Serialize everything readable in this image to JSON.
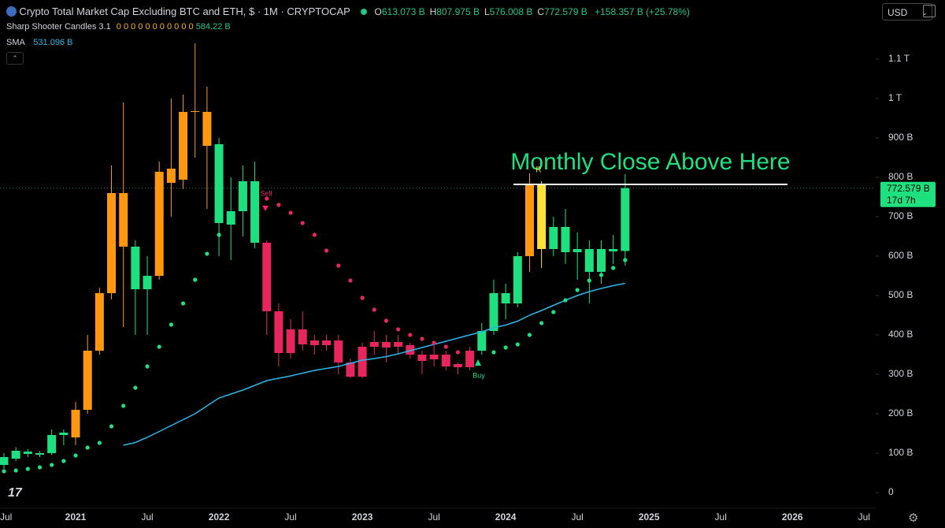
{
  "header": {
    "title": "Crypto Total Market Cap Excluding BTC and ETH, $ · 1M · CRYPTOCAP",
    "ohlc": [
      {
        "key": "O",
        "value": "613.073 B"
      },
      {
        "key": "H",
        "value": "807.975 B"
      },
      {
        "key": "L",
        "value": "576.008 B"
      },
      {
        "key": "C",
        "value": "772.579 B"
      }
    ],
    "change": "+158.357 B (+25.78%)",
    "indicators": [
      {
        "name": "Sharp Shooter Candles 3.1",
        "params": "0 0 0 0 0 0 0 0 0 0 0",
        "value": "584.22 B"
      },
      {
        "name": "SMA",
        "value": "531.096 B"
      }
    ],
    "currency": "USD"
  },
  "chart_data": {
    "type": "candlestick",
    "categories": [
      "Jul",
      null,
      null,
      null,
      null,
      null,
      "2021",
      null,
      null,
      null,
      null,
      null,
      "Jul",
      null,
      null,
      null,
      null,
      null,
      "2022",
      null,
      null,
      null,
      null,
      null,
      "Jul",
      null,
      null,
      null,
      null,
      null,
      "2023",
      null,
      null,
      null,
      null,
      null,
      "Jul",
      null,
      null,
      null,
      null,
      null,
      "2024",
      null,
      null,
      null,
      null,
      null,
      "Jul",
      null,
      null,
      null,
      null,
      null,
      "2025",
      null,
      null,
      null,
      null,
      null,
      "Jul",
      null,
      null,
      null,
      null,
      null,
      "2026",
      null,
      null,
      null,
      null,
      null,
      "Jul"
    ],
    "open": [
      70,
      86,
      98,
      96,
      100,
      146,
      140,
      210,
      360,
      506,
      760,
      624,
      516,
      550,
      786,
      794,
      966,
      966,
      884,
      714,
      714,
      790,
      634,
      460,
      354,
      414,
      386,
      374,
      386,
      330,
      294,
      370,
      368,
      382,
      374,
      350,
      338,
      350,
      326,
      318,
      360,
      410,
      506,
      480,
      600,
      784,
      618,
      674,
      610,
      618,
      560,
      618,
      613.073,
      null,
      null,
      null,
      null,
      null,
      null,
      null,
      null,
      null,
      null,
      null,
      null,
      null,
      null,
      null,
      null,
      null,
      null,
      null,
      null
    ],
    "high": [
      100,
      115,
      110,
      105,
      160,
      160,
      230,
      400,
      520,
      830,
      990,
      640,
      600,
      840,
      1000,
      1010,
      1140,
      1030,
      900,
      800,
      830,
      840,
      640,
      480,
      440,
      460,
      400,
      400,
      400,
      340,
      380,
      410,
      400,
      400,
      380,
      360,
      380,
      360,
      330,
      370,
      430,
      540,
      530,
      610,
      810,
      790,
      700,
      720,
      660,
      640,
      640,
      654,
      807.975,
      null,
      null,
      null,
      null,
      null,
      null,
      null,
      null,
      null,
      null,
      null,
      null,
      null,
      null,
      null,
      null,
      null,
      null,
      null,
      null
    ],
    "low": [
      60,
      80,
      90,
      90,
      95,
      120,
      120,
      200,
      350,
      490,
      420,
      400,
      400,
      540,
      700,
      770,
      850,
      720,
      600,
      590,
      650,
      620,
      400,
      320,
      340,
      360,
      350,
      360,
      300,
      290,
      290,
      350,
      330,
      350,
      340,
      300,
      320,
      310,
      300,
      310,
      350,
      400,
      440,
      470,
      560,
      570,
      600,
      580,
      540,
      480,
      530,
      580,
      576.008,
      null,
      null,
      null,
      null,
      null,
      null,
      null,
      null,
      null,
      null,
      null,
      null,
      null,
      null,
      null,
      null,
      null,
      null,
      null,
      null
    ],
    "close": [
      90,
      106,
      104,
      100,
      146,
      152,
      210,
      360,
      506,
      760,
      624,
      516,
      550,
      814,
      822,
      966,
      968,
      880,
      684,
      680,
      790,
      634,
      460,
      354,
      414,
      376,
      374,
      386,
      330,
      294,
      370,
      382,
      382,
      370,
      350,
      334,
      350,
      320,
      318,
      360,
      410,
      506,
      480,
      600,
      784,
      618,
      674,
      610,
      618,
      560,
      618,
      612,
      772.579,
      null,
      null,
      null,
      null,
      null,
      null,
      null,
      null,
      null,
      null,
      null,
      null,
      null,
      null,
      null,
      null,
      null,
      null,
      null,
      null
    ],
    "candle_colors": [
      "#1ee07f",
      "#1ee07f",
      "#1ee07f",
      "#1ee07f",
      "#1ee07f",
      "#1ee07f",
      "#ff9810",
      "#ff9810",
      "#ff9810",
      "#ff9810",
      "#ff9810",
      "#1ee07f",
      "#1ee07f",
      "#ff9810",
      "#ff9810",
      "#ff9810",
      "#ff9810",
      "#ff9810",
      "#1ee07f",
      "#1ee07f",
      "#1ee07f",
      "#1ee07f",
      "#e8265e",
      "#e8265e",
      "#e8265e",
      "#e8265e",
      "#e8265e",
      "#e8265e",
      "#e8265e",
      "#e8265e",
      "#e8265e",
      "#e8265e",
      "#e8265e",
      "#e8265e",
      "#e8265e",
      "#e8265e",
      "#e8265e",
      "#e8265e",
      "#e8265e",
      "#e8265e",
      "#1ee07f",
      "#1ee07f",
      "#1ee07f",
      "#1ee07f",
      "#ff9810",
      "#ffe13a",
      "#1ee07f",
      "#1ee07f",
      "#1ee07f",
      "#1ee07f",
      "#1ee07f",
      "#1ee07f",
      "#1ee07f",
      null,
      null,
      null,
      null,
      null,
      null,
      null,
      null,
      null,
      null,
      null,
      null,
      null,
      null,
      null,
      null,
      null,
      null,
      null,
      null
    ],
    "series": [
      {
        "name": "SMA",
        "color": "#29b6e8",
        "values": [
          null,
          null,
          null,
          null,
          null,
          null,
          null,
          null,
          null,
          null,
          120,
          127,
          140,
          155,
          170,
          185,
          200,
          220,
          240,
          250,
          260,
          272,
          284,
          290,
          296,
          303,
          310,
          315,
          320,
          328,
          336,
          340,
          345,
          352,
          360,
          368,
          376,
          384,
          392,
          400,
          408,
          418,
          425,
          435,
          450,
          462,
          475,
          488,
          500,
          510,
          518,
          525,
          531.096,
          null,
          null,
          null,
          null,
          null,
          null,
          null,
          null,
          null,
          null,
          null,
          null,
          null,
          null,
          null,
          null,
          null,
          null,
          null,
          null
        ]
      },
      {
        "name": "Sharp Shooter Candles 3.1",
        "color": "#1ee07f",
        "values": [
          54,
          56,
          60,
          64,
          70,
          80,
          94,
          114,
          126,
          168,
          220,
          266,
          320,
          370,
          426,
          480,
          540,
          606,
          654,
          null,
          null,
          null,
          null,
          null,
          null,
          null,
          null,
          null,
          null,
          null,
          null,
          null,
          null,
          null,
          null,
          null,
          null,
          null,
          null,
          null,
          null,
          356,
          368,
          376,
          400,
          430,
          458,
          488,
          514,
          538,
          552,
          570,
          590,
          null,
          null,
          null,
          null,
          null,
          null,
          null,
          null,
          null,
          null,
          null,
          null,
          null,
          null,
          null,
          null,
          null,
          null,
          null,
          null
        ]
      },
      {
        "name": "Sharp Shooter Candles 3.1",
        "color": "#e8265e",
        "values": [
          null,
          null,
          null,
          null,
          null,
          null,
          null,
          null,
          null,
          null,
          null,
          null,
          null,
          null,
          null,
          null,
          null,
          null,
          null,
          null,
          null,
          null,
          746,
          730,
          710,
          684,
          654,
          614,
          576,
          538,
          494,
          464,
          436,
          414,
          400,
          390,
          380,
          370,
          356,
          352,
          null,
          null,
          null,
          null,
          null,
          null,
          null,
          null,
          null,
          null,
          null,
          null,
          null,
          null,
          null,
          null,
          null,
          null,
          null,
          null,
          null,
          null,
          null,
          null,
          null,
          null,
          null,
          null,
          null,
          null,
          null,
          null,
          null
        ]
      }
    ],
    "ylim": [
      -40,
      1250
    ],
    "yticks": [
      0,
      {
        "value": 100,
        "label": "100 B"
      },
      {
        "value": 200,
        "label": "200 B"
      },
      {
        "value": 300,
        "label": "300 B"
      },
      {
        "value": 400,
        "label": "400 B"
      },
      {
        "value": 500,
        "label": "500 B"
      },
      {
        "value": 600,
        "label": "600 B"
      },
      {
        "value": 700,
        "label": "700 B"
      },
      {
        "value": 800,
        "label": "800 B"
      },
      {
        "value": 900,
        "label": "900 B"
      },
      {
        "value": 1000,
        "label": "1 T"
      },
      {
        "value": 1100,
        "label": "1.1 T"
      }
    ],
    "grid": false,
    "resistance": {
      "value": 782,
      "label": "Monthly Close Above Here",
      "color": "#ffffff"
    },
    "last_price": {
      "value": 772.579,
      "label": "772.579 B",
      "countdown": "17d 7h",
      "color": "#1ee07f"
    },
    "signals": {
      "sell": "Sell",
      "buy": "Buy",
      "marker": "R"
    }
  }
}
